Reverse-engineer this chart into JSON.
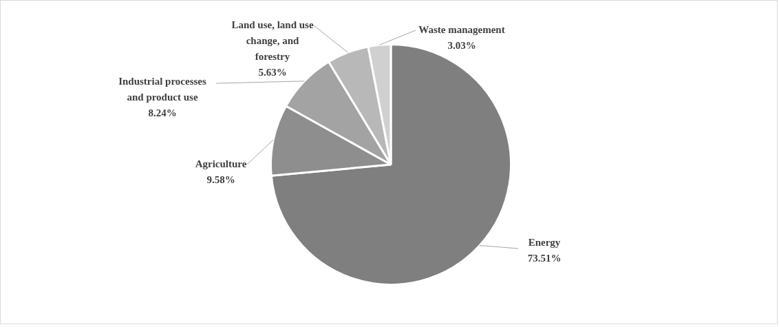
{
  "chart_data": {
    "type": "pie",
    "categories": [
      "Energy",
      "Agriculture",
      "Industrial processes and product use",
      "Land use, land use change, and forestry",
      "Waste management"
    ],
    "values": [
      73.51,
      9.58,
      8.24,
      5.63,
      3.03
    ],
    "colors": [
      "#7f7f7f",
      "#8e8e8e",
      "#a3a3a3",
      "#b8b8b8",
      "#d0d0d0"
    ],
    "value_labels": [
      "73.51%",
      "9.58%",
      "8.24%",
      "5.63%",
      "3.03%"
    ],
    "legend": false
  }
}
